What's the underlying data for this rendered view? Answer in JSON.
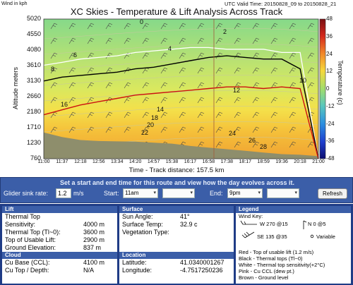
{
  "header": {
    "wind_unit": "Wind in kph",
    "utc": "UTC Valid Time: 20150828_09 to 20150828_21",
    "title": "XC Skies - Temperature & Lift Analysis Across Track"
  },
  "chart": {
    "y_label": "Altitude meters",
    "y_ticks": [
      "5020",
      "4550",
      "4080",
      "3610",
      "3130",
      "2660",
      "2180",
      "1710",
      "1230",
      "760"
    ],
    "x_ticks": [
      "11:00",
      "11:37",
      "12:18",
      "12:56",
      "13:34",
      "14:20",
      "14:57",
      "15:38",
      "16:17",
      "16:58",
      "17:38",
      "18:17",
      "18:59",
      "19:36",
      "20:18",
      "21:00"
    ],
    "x_label": "Time - Track distance: 157.5 km",
    "colorbar_label": "Temperature (c)",
    "colorbar_ticks": [
      "48",
      "36",
      "24",
      "12",
      "0",
      "-12",
      "-24",
      "-36",
      "-48"
    ],
    "isotherm_labels": [
      {
        "text": "0",
        "series": "isotherm"
      },
      {
        "text": "2",
        "series": "isotherm"
      },
      {
        "text": "4",
        "series": "isotherm"
      },
      {
        "text": "6",
        "series": "isotherm"
      },
      {
        "text": "8",
        "series": "isotherm"
      },
      {
        "text": "10",
        "series": "isotherm"
      },
      {
        "text": "12",
        "series": "isotherm"
      },
      {
        "text": "14",
        "series": "isotherm"
      },
      {
        "text": "16",
        "series": "isotherm"
      },
      {
        "text": "18",
        "series": "isotherm"
      },
      {
        "text": "20",
        "series": "isotherm"
      },
      {
        "text": "22",
        "series": "isotherm"
      },
      {
        "text": "24",
        "series": "isotherm"
      },
      {
        "text": "26",
        "series": "isotherm"
      },
      {
        "text": "28",
        "series": "isotherm"
      }
    ],
    "colors": {
      "red_line": "#cc1111",
      "black_line": "#000000",
      "white_line": "#ffffff",
      "ground": "#8e8e6c"
    }
  },
  "chart_data": {
    "type": "area",
    "x": [
      "11:00",
      "11:37",
      "12:18",
      "12:56",
      "13:34",
      "14:20",
      "14:57",
      "15:38",
      "16:17",
      "16:58",
      "17:38",
      "18:17",
      "18:59",
      "19:36",
      "20:18",
      "21:00"
    ],
    "series": [
      {
        "values": [
          3130,
          3250,
          3300,
          3350,
          3400,
          3500,
          3550,
          3650,
          3750,
          3850,
          3900,
          3850,
          3800,
          3800,
          3500,
          760
        ]
      },
      {
        "values": [
          2100,
          2250,
          2400,
          2500,
          2600,
          2700,
          2750,
          2800,
          2850,
          2900,
          2950,
          2950,
          2900,
          2950,
          2900,
          760
        ]
      },
      {
        "values": [
          3610,
          3700,
          3800,
          3850,
          3900,
          4000,
          4050,
          4100,
          4150,
          4150,
          4100,
          4100,
          4100,
          4000,
          4000,
          760
        ]
      },
      {
        "values": [
          1560,
          1420,
          1330,
          1300,
          1290,
          1280,
          1250,
          1220,
          1150,
          1100,
          1050,
          1000,
          950,
          900,
          880,
          837
        ]
      }
    ],
    "ylim": [
      760,
      5020
    ]
  },
  "controls": {
    "message": "Set a start and end time for this route and view how the day evolves across it.",
    "sink_label": "Glider sink rate:",
    "sink_value": "1.2",
    "sink_unit": "m/s",
    "start_label": "Start:",
    "start_value": "11am",
    "start_minutes": "",
    "end_label": "End:",
    "end_value": "9pm",
    "end_minutes": "",
    "refresh_label": "Refresh"
  },
  "lift_panel": {
    "header": "Lift",
    "rows": [
      {
        "label": "Thermal Top",
        "value": ""
      },
      {
        "label": "Sensitivity:",
        "value": "4000 m"
      },
      {
        "label": "Thermal Top (Tl~0):",
        "value": "3600 m"
      },
      {
        "label": "Top of Usable Lift:",
        "value": "2900 m"
      },
      {
        "label": "Ground Elevation:",
        "value": "837 m"
      }
    ],
    "cloud_header": "Cloud",
    "cloud_rows": [
      {
        "label": "Cu Base (CCL):",
        "value": "4100 m"
      },
      {
        "label": "Cu Top / Depth:",
        "value": "N/A"
      }
    ]
  },
  "surface_panel": {
    "header": "Surface",
    "rows": [
      {
        "label": "Sun Angle:",
        "value": "41°"
      },
      {
        "label": "Surface Temp:",
        "value": "32.9 c"
      },
      {
        "label": "Vegetation Type:",
        "value": ""
      }
    ],
    "location_header": "Location",
    "location_rows": [
      {
        "label": "Latitude:",
        "value": "41.0340001267"
      },
      {
        "label": "Longitude:",
        "value": "-4.7517250236"
      }
    ]
  },
  "legend_panel": {
    "header": "Legend",
    "wind_key": "Wind Key:",
    "wind_w": "W 270 @15",
    "wind_n": "N 0 @5",
    "wind_se": "SE 135 @35",
    "wind_var": "Variable",
    "lines": [
      "Red - Top of usable lift (1.2 m/s)",
      "Black - Thermal tops (Tl~0)",
      "White - Thermal top sensitivity(+2°C)",
      "Pink - Cu CCL (dew pt.)",
      "Brown - Ground level"
    ]
  }
}
